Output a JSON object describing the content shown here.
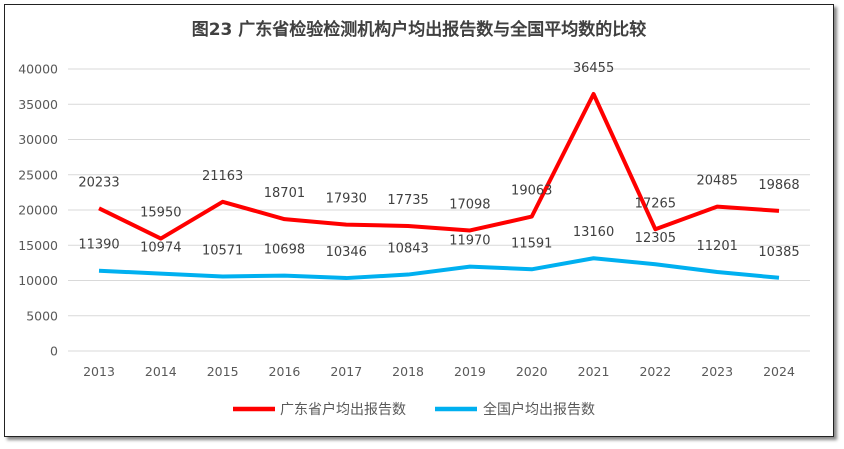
{
  "chart_data": {
    "type": "line",
    "title": "图23  广东省检验检测机构户均出报告数与全国平均数的比较",
    "categories": [
      "2013",
      "2014",
      "2015",
      "2016",
      "2017",
      "2018",
      "2019",
      "2020",
      "2021",
      "2022",
      "2023",
      "2024"
    ],
    "series": [
      {
        "name": "广东省户均出报告数",
        "color": "#FF0000",
        "values": [
          20233,
          15950,
          21163,
          18701,
          17930,
          17735,
          17098,
          19063,
          36455,
          17265,
          20485,
          19868
        ]
      },
      {
        "name": "全国户均出报告数",
        "color": "#00B0F0",
        "values": [
          11390,
          10974,
          10571,
          10698,
          10346,
          10843,
          11970,
          11591,
          13160,
          12305,
          11201,
          10385
        ]
      }
    ],
    "ylim": [
      0,
      40000
    ],
    "yticks": [
      "0",
      "5000",
      "10000",
      "15000",
      "20000",
      "25000",
      "30000",
      "35000",
      "40000"
    ],
    "grid": true,
    "legend": "bottom",
    "data_labels": true
  }
}
